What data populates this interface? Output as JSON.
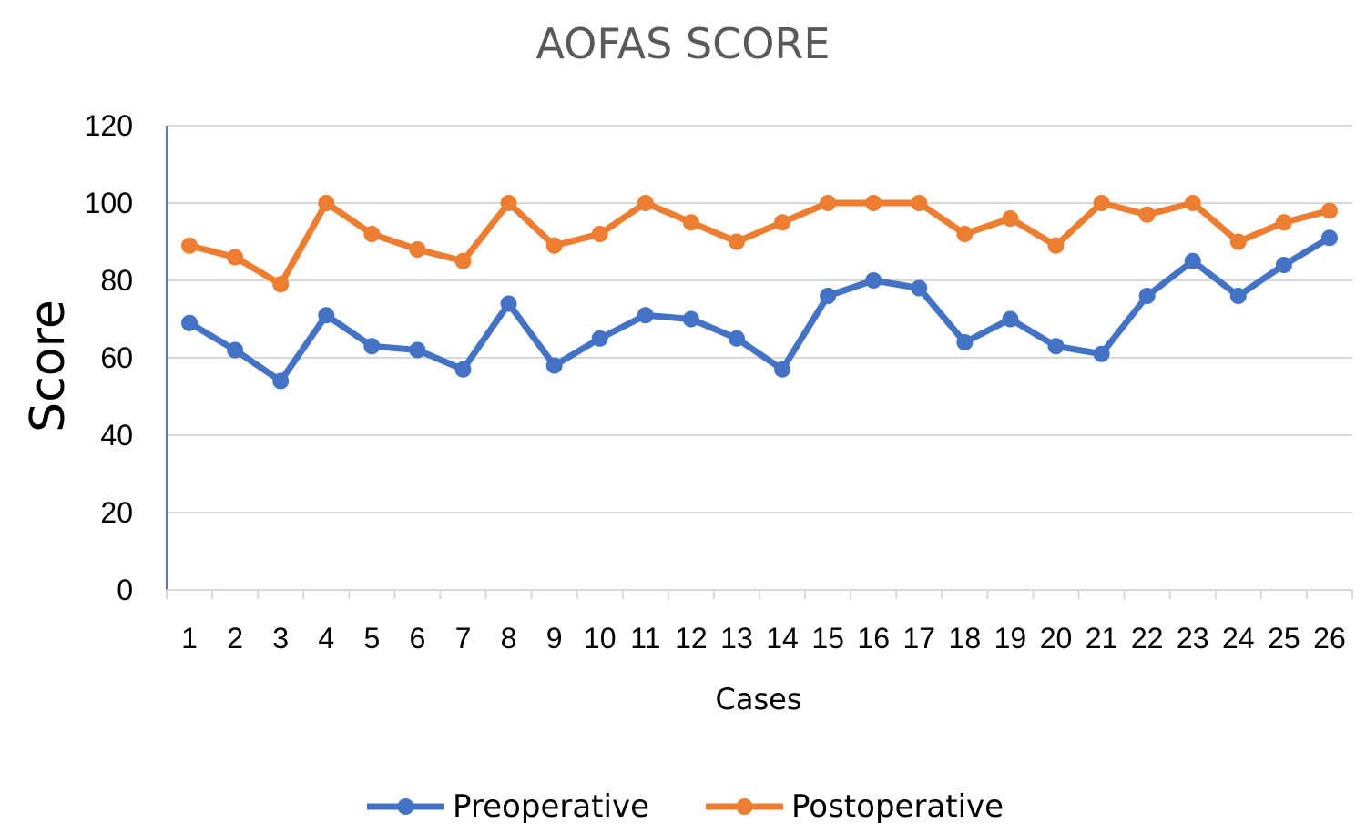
{
  "chart_data": {
    "type": "line",
    "title": "AOFAS SCORE",
    "xlabel": "Cases",
    "ylabel": "Score",
    "ylim": [
      0,
      120
    ],
    "yticks": [
      0,
      20,
      40,
      60,
      80,
      100,
      120
    ],
    "grid": true,
    "legend_position": "bottom",
    "categories": [
      "1",
      "2",
      "3",
      "4",
      "5",
      "6",
      "7",
      "8",
      "9",
      "10",
      "11",
      "12",
      "13",
      "14",
      "15",
      "16",
      "17",
      "18",
      "19",
      "20",
      "21",
      "22",
      "23",
      "24",
      "25",
      "26"
    ],
    "series": [
      {
        "name": "Preoperative",
        "color": "#4472c4",
        "values": [
          69,
          62,
          54,
          71,
          63,
          62,
          57,
          74,
          58,
          65,
          71,
          70,
          65,
          57,
          76,
          80,
          78,
          64,
          70,
          63,
          61,
          76,
          85,
          76,
          84,
          91
        ]
      },
      {
        "name": "Postoperative",
        "color": "#ed7d31",
        "values": [
          89,
          86,
          79,
          100,
          92,
          88,
          85,
          100,
          89,
          92,
          100,
          95,
          90,
          95,
          100,
          100,
          100,
          92,
          96,
          89,
          100,
          97,
          100,
          90,
          95,
          98
        ]
      }
    ]
  }
}
